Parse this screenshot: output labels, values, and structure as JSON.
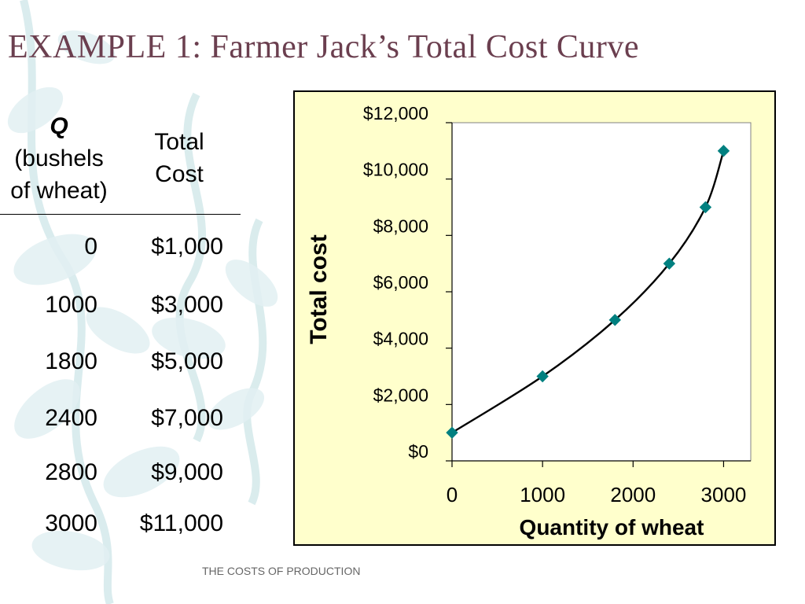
{
  "slide": {
    "title": "EXAMPLE 1:  Farmer Jack’s Total Cost Curve",
    "footer": "THE COSTS OF PRODUCTION"
  },
  "table": {
    "q_header": {
      "symbol": "Q",
      "line2": "(bushels",
      "line3": "of wheat)"
    },
    "tc_header": {
      "line1": "Total",
      "line2": "Cost"
    },
    "rows": [
      {
        "q": "0",
        "tc": "$1,000"
      },
      {
        "q": "1000",
        "tc": "$3,000"
      },
      {
        "q": "1800",
        "tc": "$5,000"
      },
      {
        "q": "2400",
        "tc": "$7,000"
      },
      {
        "q": "2800",
        "tc": "$9,000"
      },
      {
        "q": "3000",
        "tc": "$11,000"
      }
    ]
  },
  "chart_data": {
    "type": "line",
    "title": "",
    "xlabel": "Quantity of wheat",
    "ylabel": "Total cost",
    "xlim": [
      0,
      3300
    ],
    "ylim": [
      0,
      12000
    ],
    "x_ticks": [
      0,
      1000,
      2000,
      3000
    ],
    "x_tick_labels": [
      "0",
      "1000",
      "2000",
      "3000"
    ],
    "y_ticks": [
      0,
      2000,
      4000,
      6000,
      8000,
      10000,
      12000
    ],
    "y_tick_labels": [
      "$0",
      "$2,000",
      "$4,000",
      "$6,000",
      "$8,000",
      "$10,000",
      "$12,000"
    ],
    "grid": false,
    "legend": "none",
    "series": [
      {
        "x": [
          0,
          1000,
          1800,
          2400,
          2800,
          3000
        ],
        "y": [
          1000,
          3000,
          5000,
          7000,
          9000,
          11000
        ],
        "line_color": "#000000",
        "marker": "diamond",
        "marker_color": "#008080"
      }
    ],
    "plot_background": "#ffffff",
    "panel_background": "#ffffcc"
  },
  "colors": {
    "title": "#6b3f4f",
    "decoration": "#cfe6e8"
  }
}
